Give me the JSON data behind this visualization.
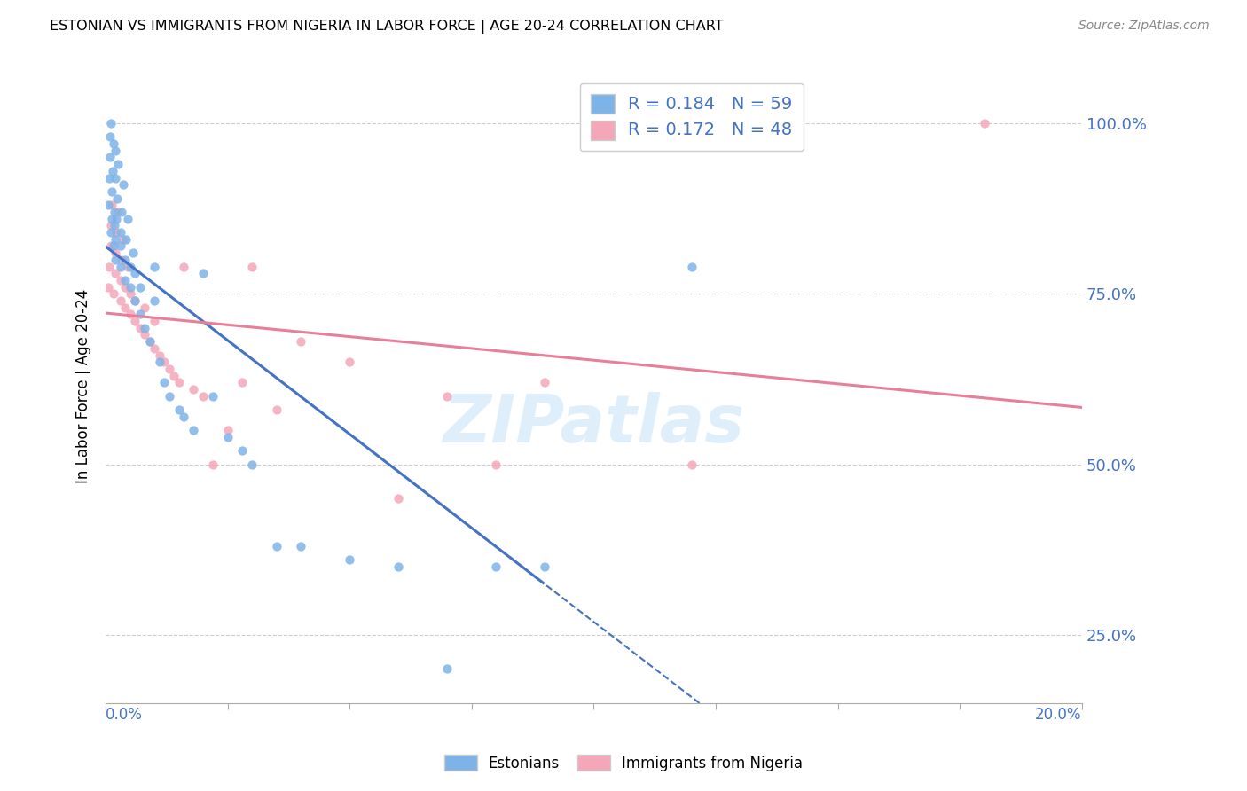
{
  "title": "ESTONIAN VS IMMIGRANTS FROM NIGERIA IN LABOR FORCE | AGE 20-24 CORRELATION CHART",
  "source": "Source: ZipAtlas.com",
  "ylabel": "In Labor Force | Age 20-24",
  "xmin": 0.0,
  "xmax": 0.2,
  "ymin": 0.15,
  "ymax": 1.08,
  "blue_R": 0.184,
  "blue_N": 59,
  "pink_R": 0.172,
  "pink_N": 48,
  "legend_label_blue": "Estonians",
  "legend_label_pink": "Immigrants from Nigeria",
  "blue_color": "#7EB3E8",
  "pink_color": "#F4A7B9",
  "blue_line_color": "#4472C4",
  "pink_line_color": "#E87F9A",
  "dot_size": 55,
  "blue_scatter_x": [
    0.0005,
    0.0007,
    0.0008,
    0.0009,
    0.001,
    0.001,
    0.0012,
    0.0013,
    0.0014,
    0.0015,
    0.0016,
    0.0017,
    0.0018,
    0.0019,
    0.002,
    0.002,
    0.002,
    0.0022,
    0.0023,
    0.0025,
    0.003,
    0.003,
    0.003,
    0.0032,
    0.0035,
    0.004,
    0.004,
    0.0042,
    0.0045,
    0.005,
    0.005,
    0.0055,
    0.006,
    0.006,
    0.007,
    0.007,
    0.008,
    0.009,
    0.01,
    0.01,
    0.011,
    0.012,
    0.013,
    0.015,
    0.016,
    0.018,
    0.02,
    0.022,
    0.025,
    0.028,
    0.03,
    0.035,
    0.04,
    0.05,
    0.06,
    0.07,
    0.08,
    0.09,
    0.12
  ],
  "blue_scatter_y": [
    0.88,
    0.92,
    0.95,
    0.98,
    1.0,
    0.84,
    0.86,
    0.9,
    0.93,
    0.97,
    0.82,
    0.85,
    0.87,
    0.92,
    0.96,
    0.8,
    0.83,
    0.86,
    0.89,
    0.94,
    0.79,
    0.82,
    0.84,
    0.87,
    0.91,
    0.77,
    0.8,
    0.83,
    0.86,
    0.79,
    0.76,
    0.81,
    0.74,
    0.78,
    0.72,
    0.76,
    0.7,
    0.68,
    0.74,
    0.79,
    0.65,
    0.62,
    0.6,
    0.58,
    0.57,
    0.55,
    0.78,
    0.6,
    0.54,
    0.52,
    0.5,
    0.38,
    0.38,
    0.36,
    0.35,
    0.2,
    0.35,
    0.35,
    0.79
  ],
  "pink_scatter_x": [
    0.0005,
    0.0007,
    0.001,
    0.001,
    0.0012,
    0.0015,
    0.002,
    0.002,
    0.0022,
    0.0025,
    0.003,
    0.003,
    0.0032,
    0.0035,
    0.004,
    0.004,
    0.0045,
    0.005,
    0.005,
    0.006,
    0.006,
    0.007,
    0.008,
    0.008,
    0.009,
    0.01,
    0.01,
    0.011,
    0.012,
    0.013,
    0.014,
    0.015,
    0.016,
    0.018,
    0.02,
    0.022,
    0.025,
    0.028,
    0.03,
    0.035,
    0.04,
    0.05,
    0.06,
    0.07,
    0.08,
    0.09,
    0.12,
    0.18
  ],
  "pink_scatter_y": [
    0.76,
    0.79,
    0.82,
    0.85,
    0.88,
    0.75,
    0.78,
    0.81,
    0.84,
    0.87,
    0.74,
    0.77,
    0.8,
    0.83,
    0.73,
    0.76,
    0.79,
    0.72,
    0.75,
    0.71,
    0.74,
    0.7,
    0.69,
    0.73,
    0.68,
    0.67,
    0.71,
    0.66,
    0.65,
    0.64,
    0.63,
    0.62,
    0.79,
    0.61,
    0.6,
    0.5,
    0.55,
    0.62,
    0.79,
    0.58,
    0.68,
    0.65,
    0.45,
    0.6,
    0.5,
    0.62,
    0.5,
    1.0
  ]
}
